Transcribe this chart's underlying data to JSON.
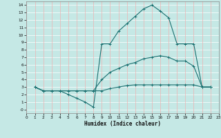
{
  "xlabel": "Humidex (Indice chaleur)",
  "bg_color": "#c5e8e5",
  "grid_h_color": "#ffffff",
  "grid_v_color": "#f0b0b0",
  "line_color": "#1a7070",
  "xlim": [
    0,
    23
  ],
  "ylim": [
    -0.5,
    14.5
  ],
  "xticks": [
    0,
    1,
    2,
    3,
    4,
    5,
    6,
    7,
    8,
    9,
    10,
    11,
    12,
    13,
    14,
    15,
    16,
    17,
    18,
    19,
    20,
    21,
    22,
    23
  ],
  "yticks": [
    0,
    1,
    2,
    3,
    4,
    5,
    6,
    7,
    8,
    9,
    10,
    11,
    12,
    13,
    14
  ],
  "ytick_labels": [
    "-0",
    "1",
    "2",
    "3",
    "4",
    "5",
    "6",
    "7",
    "8",
    "9",
    "10",
    "11",
    "12",
    "13",
    "14"
  ],
  "line1_x": [
    1,
    2,
    3,
    4,
    5,
    6,
    7,
    8,
    9,
    10,
    11,
    12,
    13,
    14,
    15,
    16,
    17,
    18,
    19,
    20,
    21,
    22
  ],
  "line1_y": [
    3.0,
    2.5,
    2.5,
    2.5,
    2.5,
    2.5,
    2.5,
    2.5,
    2.5,
    2.8,
    3.0,
    3.2,
    3.3,
    3.3,
    3.3,
    3.3,
    3.3,
    3.3,
    3.3,
    3.3,
    3.0,
    3.0
  ],
  "line2_x": [
    1,
    2,
    3,
    4,
    5,
    6,
    7,
    8,
    9,
    10,
    11,
    12,
    13,
    14,
    15,
    16,
    17,
    18,
    19,
    20,
    21,
    22
  ],
  "line2_y": [
    3.0,
    2.5,
    2.5,
    2.5,
    2.5,
    2.5,
    2.5,
    2.5,
    4.0,
    5.0,
    5.5,
    6.0,
    6.3,
    6.8,
    7.0,
    7.2,
    7.0,
    6.5,
    6.5,
    5.8,
    3.0,
    3.0
  ],
  "line3_x": [
    1,
    2,
    3,
    4,
    5,
    6,
    7,
    8,
    9,
    10,
    11,
    12,
    13,
    14,
    15,
    16,
    17,
    18,
    19,
    20,
    21,
    22
  ],
  "line3_y": [
    3.0,
    2.5,
    2.5,
    2.5,
    2.0,
    1.5,
    1.0,
    0.3,
    8.8,
    8.8,
    10.5,
    11.5,
    12.5,
    13.5,
    14.0,
    13.2,
    12.3,
    8.8,
    8.8,
    8.8,
    3.0,
    3.0
  ]
}
